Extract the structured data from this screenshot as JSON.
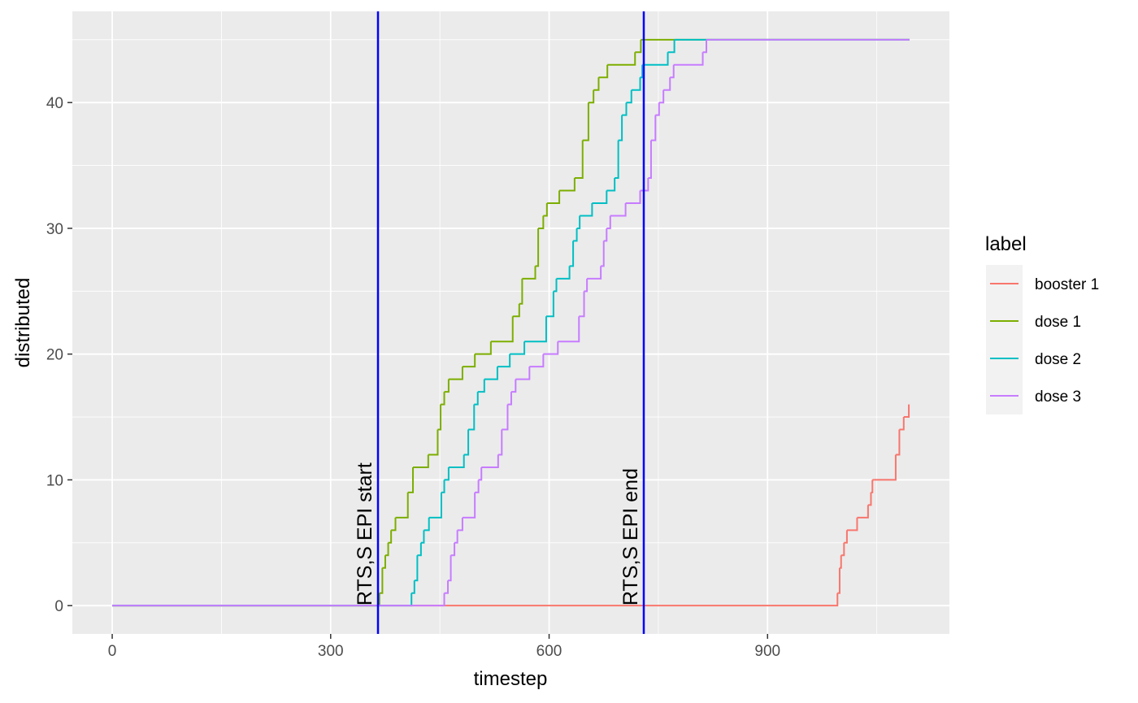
{
  "chart_data": {
    "type": "step",
    "x_label": "timestep",
    "y_label": "distributed",
    "legend_title": "label",
    "legend_position": "right",
    "grid": true,
    "xlim": [
      -54.75,
      1149.75
    ],
    "ylim": [
      -2.25,
      47.25
    ],
    "xticks": [
      0,
      300,
      600,
      900
    ],
    "yticks": [
      0,
      10,
      20,
      30,
      40
    ],
    "vlines": [
      {
        "x": 365,
        "label": "RTS,S EPI start",
        "color": "#0000ff"
      },
      {
        "x": 730,
        "label": "RTS,S EPI end",
        "color": "#0000ff"
      }
    ],
    "series": [
      {
        "name": "booster 1",
        "color": "#f8766d",
        "x": [
          0,
          996,
          999,
          1001,
          1005,
          1009,
          1023,
          1038,
          1042,
          1044,
          1046,
          1076,
          1081,
          1087,
          1094
        ],
        "values": [
          0,
          1,
          3,
          4,
          5,
          6,
          7,
          8,
          9,
          10,
          10,
          12,
          14,
          15,
          16
        ]
      },
      {
        "name": "dose 1",
        "color": "#7cae00",
        "x": [
          0,
          367,
          371,
          375,
          379,
          383,
          389,
          406,
          413,
          434,
          447,
          451,
          456,
          462,
          481,
          498,
          520,
          550,
          559,
          563,
          581,
          585,
          592,
          597,
          614,
          635,
          646,
          654,
          661,
          668,
          680,
          718,
          726,
          1095
        ],
        "values": [
          0,
          1,
          3,
          4,
          5,
          6,
          7,
          9,
          11,
          12,
          14,
          16,
          17,
          18,
          19,
          20,
          21,
          23,
          24,
          26,
          27,
          30,
          31,
          32,
          33,
          34,
          37,
          40,
          41,
          42,
          43,
          44,
          45,
          45
        ]
      },
      {
        "name": "dose 2",
        "color": "#00bfc4",
        "x": [
          0,
          411,
          415,
          419,
          424,
          428,
          435,
          452,
          456,
          462,
          483,
          489,
          497,
          502,
          511,
          529,
          546,
          566,
          596,
          606,
          610,
          628,
          633,
          638,
          642,
          659,
          679,
          690,
          695,
          700,
          706,
          713,
          725,
          728,
          763,
          772,
          1095
        ],
        "values": [
          0,
          1,
          2,
          4,
          5,
          6,
          7,
          9,
          10,
          11,
          12,
          14,
          16,
          17,
          18,
          19,
          20,
          21,
          23,
          25,
          26,
          27,
          29,
          30,
          31,
          32,
          33,
          34,
          37,
          39,
          40,
          41,
          42,
          43,
          44,
          45,
          45
        ]
      },
      {
        "name": "dose 3",
        "color": "#c77cff",
        "x": [
          0,
          456,
          461,
          465,
          470,
          474,
          481,
          498,
          503,
          507,
          530,
          535,
          543,
          548,
          554,
          573,
          592,
          612,
          641,
          648,
          652,
          671,
          675,
          679,
          684,
          705,
          725,
          736,
          740,
          746,
          751,
          757,
          766,
          771,
          811,
          816,
          1095
        ],
        "values": [
          0,
          1,
          2,
          4,
          5,
          6,
          7,
          9,
          10,
          11,
          12,
          14,
          16,
          17,
          18,
          19,
          20,
          21,
          23,
          25,
          26,
          27,
          29,
          30,
          31,
          32,
          33,
          34,
          37,
          39,
          40,
          41,
          42,
          43,
          44,
          45,
          45
        ]
      }
    ]
  }
}
